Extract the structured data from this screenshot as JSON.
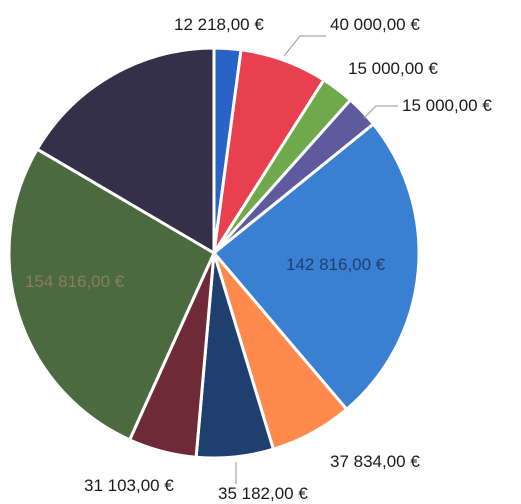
{
  "chart_data": {
    "type": "pie",
    "start_angle_deg": 0,
    "slices": [
      {
        "label": "12 218,00 €",
        "value": 12218,
        "color": "#2a63c8"
      },
      {
        "label": "40 000,00 €",
        "value": 40000,
        "color": "#e8404f"
      },
      {
        "label": "15 000,00 €",
        "value": 15000,
        "color": "#6fa94b"
      },
      {
        "label": "15 000,00 €",
        "value": 15000,
        "color": "#5d5b9e"
      },
      {
        "label": "142 816,00 €",
        "value": 142816,
        "color": "#3a80d2"
      },
      {
        "label": "37 834,00 €",
        "value": 37834,
        "color": "#ff8a4e"
      },
      {
        "label": "35 182,00 €",
        "value": 35182,
        "color": "#1f3f6e"
      },
      {
        "label": "31 103,00 €",
        "value": 31103,
        "color": "#6e2a36"
      },
      {
        "label": "154 816,00 €",
        "value": 154816,
        "color": "#4b6a40"
      },
      {
        "label": "",
        "value": 96000,
        "color": "#353049"
      }
    ]
  }
}
